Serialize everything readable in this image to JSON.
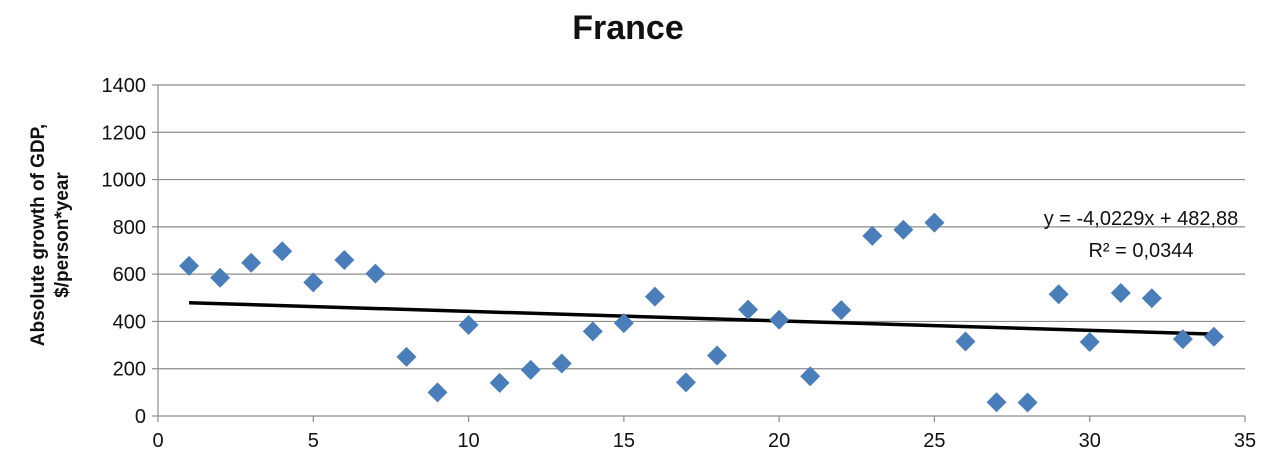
{
  "chart_data": {
    "type": "scatter",
    "title": "France",
    "xlabel": "",
    "ylabel": [
      "Absolute growth of GDP,",
      "$/person*year"
    ],
    "xlim": [
      0,
      35
    ],
    "ylim": [
      0,
      1400
    ],
    "x_ticks": [
      0,
      5,
      10,
      15,
      20,
      25,
      30,
      35
    ],
    "y_ticks": [
      0,
      200,
      400,
      600,
      800,
      1000,
      1200,
      1400
    ],
    "grid": "horizontal",
    "legend": "none",
    "series": [
      {
        "marker": "diamond",
        "color": "#4a7ebb",
        "points": [
          [
            1,
            635
          ],
          [
            2,
            585
          ],
          [
            3,
            648
          ],
          [
            4,
            697
          ],
          [
            5,
            565
          ],
          [
            6,
            660
          ],
          [
            7,
            602
          ],
          [
            8,
            250
          ],
          [
            9,
            100
          ],
          [
            10,
            385
          ],
          [
            11,
            140
          ],
          [
            12,
            195
          ],
          [
            13,
            222
          ],
          [
            14,
            358
          ],
          [
            15,
            393
          ],
          [
            16,
            505
          ],
          [
            17,
            142
          ],
          [
            18,
            256
          ],
          [
            19,
            450
          ],
          [
            20,
            407
          ],
          [
            21,
            168
          ],
          [
            22,
            448
          ],
          [
            23,
            762
          ],
          [
            24,
            788
          ],
          [
            25,
            818
          ],
          [
            26,
            315
          ],
          [
            27,
            58
          ],
          [
            28,
            57
          ],
          [
            29,
            515
          ],
          [
            30,
            313
          ],
          [
            31,
            520
          ],
          [
            32,
            498
          ],
          [
            33,
            325
          ],
          [
            34,
            335
          ]
        ]
      }
    ],
    "trendline": {
      "type": "linear",
      "slope": -4.0229,
      "intercept": 482.88,
      "x_range": [
        1,
        34
      ],
      "color": "#000000",
      "equation": "y = -4,0229x + 482,88",
      "r_squared": "R² = 0,0344"
    }
  }
}
